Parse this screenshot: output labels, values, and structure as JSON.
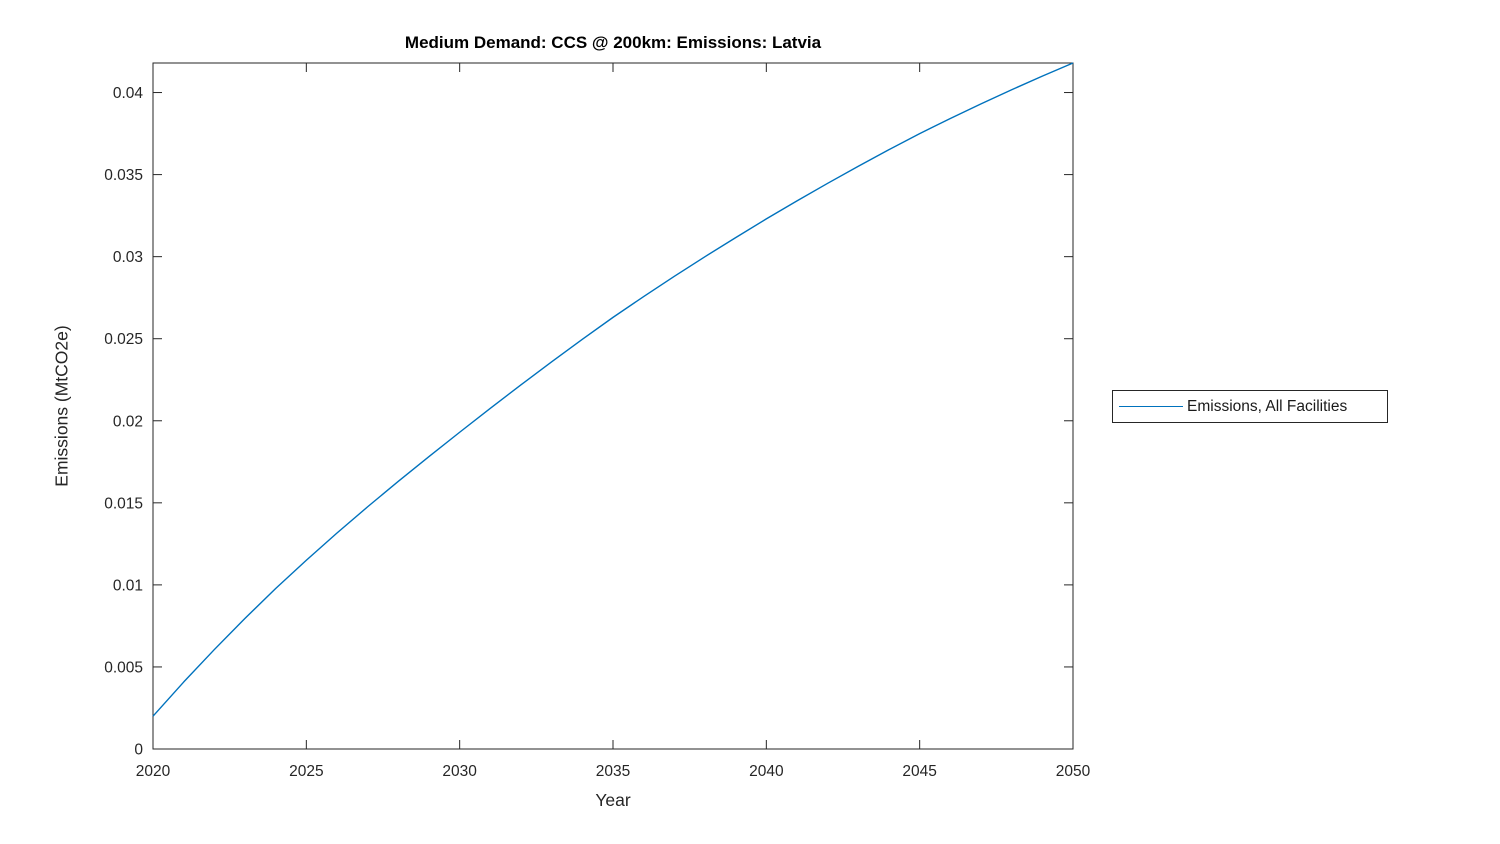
{
  "figure": {
    "title": "Medium Demand: CCS @ 200km: Emissions: Latvia",
    "background": "#ffffff"
  },
  "legend": {
    "label": "Emissions, All Facilities",
    "line_color": "#0072BD",
    "position": "right-outside-centered"
  },
  "colors": {
    "line": "#0072BD",
    "axis": "#262626",
    "title": "#000000",
    "background": "#ffffff"
  },
  "chart_data": {
    "type": "line",
    "title": "Medium Demand: CCS @ 200km: Emissions: Latvia",
    "xlabel": "Year",
    "ylabel": "Emissions (MtCO2e)",
    "xlim": [
      2020,
      2050
    ],
    "ylim": [
      0,
      0.0418
    ],
    "grid": false,
    "box": true,
    "tick_direction": "in",
    "x_ticks": [
      2020,
      2025,
      2030,
      2035,
      2040,
      2045,
      2050
    ],
    "x_tick_labels": [
      "2020",
      "2025",
      "2030",
      "2035",
      "2040",
      "2045",
      "2050"
    ],
    "y_ticks": [
      0,
      0.005,
      0.01,
      0.015,
      0.02,
      0.025,
      0.03,
      0.035,
      0.04
    ],
    "y_tick_labels": [
      "0",
      "0.005",
      "0.01",
      "0.015",
      "0.02",
      "0.025",
      "0.03",
      "0.035",
      "0.04"
    ],
    "legend_entries": [
      {
        "label": "Emissions, All Facilities",
        "color": "#0072BD"
      }
    ],
    "series": [
      {
        "name": "Emissions, All Facilities",
        "color": "#0072BD",
        "x": [
          2020,
          2021,
          2022,
          2023,
          2024,
          2025,
          2026,
          2027,
          2028,
          2029,
          2030,
          2031,
          2032,
          2033,
          2034,
          2035,
          2036,
          2037,
          2038,
          2039,
          2040,
          2041,
          2042,
          2043,
          2044,
          2045,
          2046,
          2047,
          2048,
          2049,
          2050
        ],
        "y": [
          0.002,
          0.00408,
          0.00606,
          0.00796,
          0.00978,
          0.0115,
          0.01316,
          0.01476,
          0.01631,
          0.01782,
          0.0193,
          0.02076,
          0.02219,
          0.02359,
          0.02496,
          0.0263,
          0.02757,
          0.0288,
          0.03,
          0.03116,
          0.0323,
          0.0334,
          0.03447,
          0.03551,
          0.03652,
          0.0375,
          0.03842,
          0.03931,
          0.04017,
          0.041,
          0.0418
        ]
      }
    ]
  }
}
